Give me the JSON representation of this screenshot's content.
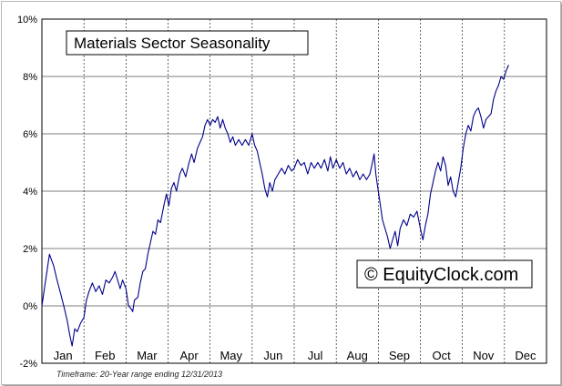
{
  "chart_data": {
    "type": "line",
    "title": "Materials Sector Seasonality",
    "watermark": "© EquityClock.com",
    "footnote": "Timeframe: 20-Year range ending 12/31/2013",
    "ylim": [
      -2,
      10
    ],
    "yticks": [
      "10%",
      "8%",
      "6%",
      "4%",
      "2%",
      "0%",
      "-2%"
    ],
    "yticks_values": [
      10,
      8,
      6,
      4,
      2,
      0,
      -2
    ],
    "months": [
      "Jan",
      "Feb",
      "Mar",
      "Apr",
      "May",
      "Jun",
      "Jul",
      "Aug",
      "Sep",
      "Oct",
      "Nov",
      "Dec"
    ],
    "grid": {
      "horizontal": "solid",
      "vertical": "dashed-month-boundaries"
    },
    "line_color": "#00008b",
    "series": [
      {
        "x_unit": "month (0 = Jan 1, 12 = Dec 31)",
        "points": [
          [
            0.0,
            0.0
          ],
          [
            0.1,
            1.0
          ],
          [
            0.18,
            1.8
          ],
          [
            0.28,
            1.4
          ],
          [
            0.36,
            0.9
          ],
          [
            0.45,
            0.4
          ],
          [
            0.52,
            0.0
          ],
          [
            0.6,
            -0.5
          ],
          [
            0.66,
            -1.0
          ],
          [
            0.72,
            -1.4
          ],
          [
            0.78,
            -0.8
          ],
          [
            0.84,
            -0.9
          ],
          [
            0.92,
            -0.6
          ],
          [
            1.0,
            -0.4
          ],
          [
            1.06,
            0.2
          ],
          [
            1.12,
            0.5
          ],
          [
            1.2,
            0.8
          ],
          [
            1.28,
            0.5
          ],
          [
            1.36,
            0.7
          ],
          [
            1.44,
            0.4
          ],
          [
            1.52,
            0.9
          ],
          [
            1.6,
            0.8
          ],
          [
            1.68,
            1.0
          ],
          [
            1.74,
            1.2
          ],
          [
            1.8,
            0.9
          ],
          [
            1.86,
            0.6
          ],
          [
            1.92,
            0.9
          ],
          [
            2.0,
            0.6
          ],
          [
            2.06,
            0.0
          ],
          [
            2.12,
            -0.1
          ],
          [
            2.16,
            -0.2
          ],
          [
            2.2,
            0.2
          ],
          [
            2.28,
            0.3
          ],
          [
            2.34,
            0.8
          ],
          [
            2.4,
            1.2
          ],
          [
            2.46,
            1.3
          ],
          [
            2.52,
            1.8
          ],
          [
            2.58,
            2.2
          ],
          [
            2.64,
            2.6
          ],
          [
            2.7,
            2.5
          ],
          [
            2.76,
            3.0
          ],
          [
            2.82,
            2.9
          ],
          [
            2.9,
            3.5
          ],
          [
            2.96,
            3.9
          ],
          [
            3.02,
            3.5
          ],
          [
            3.08,
            4.1
          ],
          [
            3.14,
            4.3
          ],
          [
            3.2,
            4.0
          ],
          [
            3.28,
            4.6
          ],
          [
            3.34,
            4.8
          ],
          [
            3.42,
            4.5
          ],
          [
            3.5,
            5.0
          ],
          [
            3.56,
            5.3
          ],
          [
            3.62,
            5.0
          ],
          [
            3.7,
            5.5
          ],
          [
            3.76,
            5.7
          ],
          [
            3.82,
            5.9
          ],
          [
            3.88,
            6.3
          ],
          [
            3.94,
            6.5
          ],
          [
            4.0,
            6.3
          ],
          [
            4.06,
            6.5
          ],
          [
            4.12,
            6.4
          ],
          [
            4.18,
            6.6
          ],
          [
            4.24,
            6.2
          ],
          [
            4.3,
            6.5
          ],
          [
            4.36,
            6.2
          ],
          [
            4.42,
            6.0
          ],
          [
            4.48,
            5.7
          ],
          [
            4.54,
            5.9
          ],
          [
            4.6,
            5.6
          ],
          [
            4.68,
            5.8
          ],
          [
            4.76,
            5.6
          ],
          [
            4.84,
            5.8
          ],
          [
            4.92,
            5.6
          ],
          [
            5.0,
            6.0
          ],
          [
            5.06,
            5.6
          ],
          [
            5.12,
            5.4
          ],
          [
            5.18,
            5.0
          ],
          [
            5.24,
            4.6
          ],
          [
            5.3,
            4.1
          ],
          [
            5.36,
            3.8
          ],
          [
            5.42,
            4.3
          ],
          [
            5.48,
            4.0
          ],
          [
            5.54,
            4.4
          ],
          [
            5.62,
            4.6
          ],
          [
            5.7,
            4.8
          ],
          [
            5.78,
            4.6
          ],
          [
            5.86,
            4.9
          ],
          [
            5.94,
            4.7
          ],
          [
            6.0,
            4.8
          ],
          [
            6.08,
            5.1
          ],
          [
            6.16,
            4.9
          ],
          [
            6.24,
            5.0
          ],
          [
            6.32,
            4.6
          ],
          [
            6.4,
            5.0
          ],
          [
            6.48,
            4.8
          ],
          [
            6.56,
            5.0
          ],
          [
            6.64,
            4.8
          ],
          [
            6.72,
            5.1
          ],
          [
            6.8,
            4.7
          ],
          [
            6.86,
            5.2
          ],
          [
            6.92,
            4.8
          ],
          [
            7.0,
            5.1
          ],
          [
            7.08,
            4.8
          ],
          [
            7.16,
            5.0
          ],
          [
            7.24,
            4.6
          ],
          [
            7.32,
            4.8
          ],
          [
            7.4,
            4.5
          ],
          [
            7.48,
            4.7
          ],
          [
            7.56,
            4.4
          ],
          [
            7.64,
            4.6
          ],
          [
            7.72,
            4.4
          ],
          [
            7.8,
            4.6
          ],
          [
            7.86,
            5.0
          ],
          [
            7.9,
            5.3
          ],
          [
            7.94,
            4.6
          ],
          [
            7.98,
            4.2
          ],
          [
            8.04,
            3.6
          ],
          [
            8.1,
            3.0
          ],
          [
            8.16,
            2.7
          ],
          [
            8.22,
            2.4
          ],
          [
            8.28,
            2.0
          ],
          [
            8.34,
            2.3
          ],
          [
            8.4,
            2.6
          ],
          [
            8.46,
            2.1
          ],
          [
            8.52,
            2.7
          ],
          [
            8.6,
            3.0
          ],
          [
            8.68,
            2.8
          ],
          [
            8.76,
            3.2
          ],
          [
            8.84,
            3.1
          ],
          [
            8.92,
            3.3
          ],
          [
            9.0,
            2.7
          ],
          [
            9.06,
            2.3
          ],
          [
            9.12,
            2.8
          ],
          [
            9.18,
            3.2
          ],
          [
            9.24,
            3.9
          ],
          [
            9.3,
            4.3
          ],
          [
            9.36,
            4.7
          ],
          [
            9.42,
            5.0
          ],
          [
            9.48,
            4.7
          ],
          [
            9.54,
            5.2
          ],
          [
            9.6,
            4.9
          ],
          [
            9.66,
            4.2
          ],
          [
            9.72,
            4.5
          ],
          [
            9.78,
            4.0
          ],
          [
            9.84,
            3.8
          ],
          [
            9.9,
            4.3
          ],
          [
            9.96,
            4.8
          ],
          [
            10.02,
            5.5
          ],
          [
            10.08,
            6.0
          ],
          [
            10.14,
            6.3
          ],
          [
            10.2,
            6.1
          ],
          [
            10.26,
            6.6
          ],
          [
            10.32,
            6.8
          ],
          [
            10.38,
            6.9
          ],
          [
            10.44,
            6.6
          ],
          [
            10.5,
            6.2
          ],
          [
            10.56,
            6.5
          ],
          [
            10.62,
            6.6
          ],
          [
            10.68,
            6.7
          ],
          [
            10.74,
            7.2
          ],
          [
            10.8,
            7.5
          ],
          [
            10.86,
            7.7
          ],
          [
            10.92,
            8.0
          ],
          [
            10.98,
            7.9
          ],
          [
            11.04,
            8.2
          ],
          [
            11.1,
            8.4
          ]
        ]
      }
    ]
  }
}
